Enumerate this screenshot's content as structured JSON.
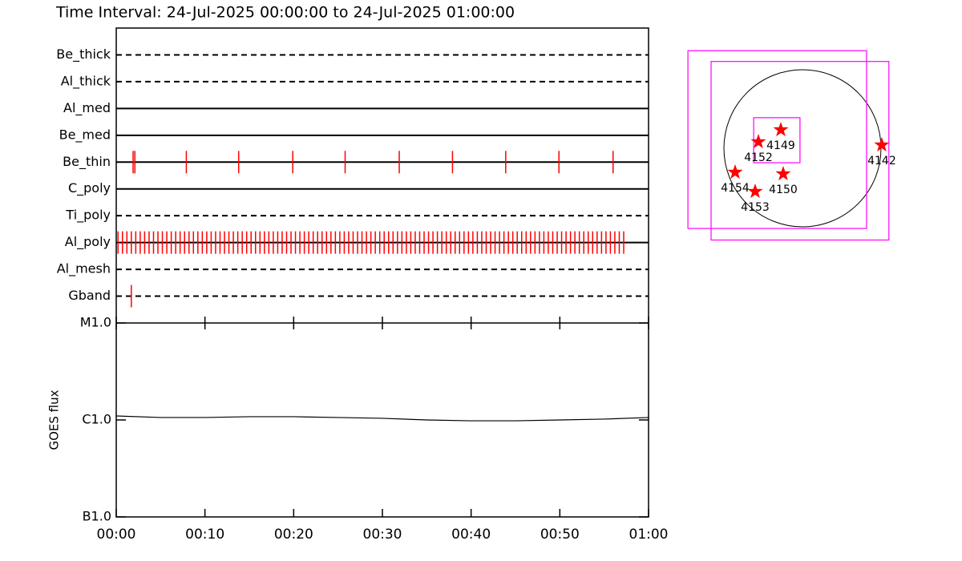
{
  "chart_data": [
    {
      "type": "timeline",
      "title": "Time Interval: 24-Jul-2025 00:00:00 to 24-Jul-2025 01:00:00",
      "xlim": [
        0,
        60
      ],
      "mark_color": "#ff0000",
      "rows": [
        {
          "name": "Be_thick",
          "style": "dashed",
          "times": []
        },
        {
          "name": "Al_thick",
          "style": "dashed",
          "times": []
        },
        {
          "name": "Al_med",
          "style": "solid",
          "times": []
        },
        {
          "name": "Be_med",
          "style": "solid",
          "times": []
        },
        {
          "name": "Be_thin",
          "style": "solid",
          "times": [
            1.9,
            2.1,
            7.9,
            13.8,
            19.9,
            25.8,
            31.9,
            37.9,
            43.9,
            49.9,
            56.0
          ]
        },
        {
          "name": "C_poly",
          "style": "solid",
          "times": []
        },
        {
          "name": "Ti_poly",
          "style": "dashed",
          "times": []
        },
        {
          "name": "Al_poly",
          "style": "solid",
          "times": [
            0.2,
            0.7,
            1.2,
            1.7,
            2.2,
            2.7,
            3.2,
            3.7,
            4.2,
            4.7,
            5.2,
            5.7,
            6.2,
            6.7,
            7.2,
            7.7,
            8.2,
            8.7,
            9.2,
            9.7,
            10.2,
            10.7,
            11.2,
            11.7,
            12.2,
            12.7,
            13.2,
            13.7,
            14.2,
            14.7,
            15.2,
            15.7,
            16.2,
            16.7,
            17.2,
            17.7,
            18.2,
            18.7,
            19.2,
            19.7,
            20.2,
            20.7,
            21.2,
            21.7,
            22.2,
            22.7,
            23.2,
            23.7,
            24.2,
            24.7,
            25.2,
            25.7,
            26.2,
            26.7,
            27.2,
            27.7,
            28.2,
            28.7,
            29.2,
            29.7,
            30.2,
            30.7,
            31.2,
            31.7,
            32.2,
            32.7,
            33.2,
            33.7,
            34.2,
            34.7,
            35.2,
            35.7,
            36.2,
            36.7,
            37.2,
            37.7,
            38.2,
            38.7,
            39.2,
            39.7,
            40.2,
            40.7,
            41.2,
            41.7,
            42.2,
            42.7,
            43.2,
            43.7,
            44.2,
            44.7,
            45.2,
            45.7,
            46.2,
            46.7,
            47.2,
            47.7,
            48.2,
            48.7,
            49.2,
            49.7,
            50.2,
            50.7,
            51.2,
            51.7,
            52.2,
            52.7,
            53.2,
            53.7,
            54.2,
            54.7,
            55.2,
            55.7,
            56.2,
            56.7,
            57.2
          ]
        },
        {
          "name": "Al_mesh",
          "style": "dashed",
          "times": []
        },
        {
          "name": "Gband",
          "style": "dashed",
          "times": [
            1.7
          ]
        }
      ]
    },
    {
      "type": "line",
      "y_label": "GOES flux",
      "log_y": true,
      "color": "#000000",
      "x": [
        0,
        5,
        10,
        15,
        20,
        25,
        30,
        35,
        40,
        45,
        50,
        55,
        60
      ],
      "values": [
        1.1e-06,
        1.06e-06,
        1.06e-06,
        1.08e-06,
        1.08e-06,
        1.06e-06,
        1.04e-06,
        1e-06,
        9.8e-07,
        9.8e-07,
        1e-06,
        1.02e-06,
        1.06e-06
      ],
      "xlim": [
        0,
        60
      ],
      "xticks": [
        {
          "value": 0,
          "label": "00:00"
        },
        {
          "value": 10,
          "label": "00:10"
        },
        {
          "value": 20,
          "label": "00:20"
        },
        {
          "value": 30,
          "label": "00:30"
        },
        {
          "value": 40,
          "label": "00:40"
        },
        {
          "value": 50,
          "label": "00:50"
        },
        {
          "value": 60,
          "label": "01:00"
        }
      ],
      "ylim": [
        1e-07,
        1e-05
      ],
      "yticks": [
        {
          "value": 1e-07,
          "label": "B1.0"
        },
        {
          "value": 1e-06,
          "label": "C1.0"
        },
        {
          "value": 1e-05,
          "label": "M1.0"
        }
      ]
    },
    {
      "type": "map",
      "radius": 950,
      "box_color": "#ff00ff",
      "star_color": "#ff0000",
      "boxes": [
        {
          "x": [
            -1385,
            775
          ],
          "y": [
            -970,
            1180
          ]
        },
        {
          "x": [
            -1105,
            1045
          ],
          "y": [
            -1110,
            1050
          ]
        },
        {
          "x": [
            -590,
            -30
          ],
          "y": [
            -175,
            370
          ]
        }
      ],
      "regions": [
        {
          "label": "4149",
          "x": -262,
          "y": 223
        },
        {
          "label": "4152",
          "x": -533,
          "y": 78
        },
        {
          "label": "4142",
          "x": 959,
          "y": 39
        },
        {
          "label": "4154",
          "x": -814,
          "y": -291
        },
        {
          "label": "4150",
          "x": -233,
          "y": -310
        },
        {
          "label": "4153",
          "x": -572,
          "y": -523
        }
      ]
    }
  ]
}
